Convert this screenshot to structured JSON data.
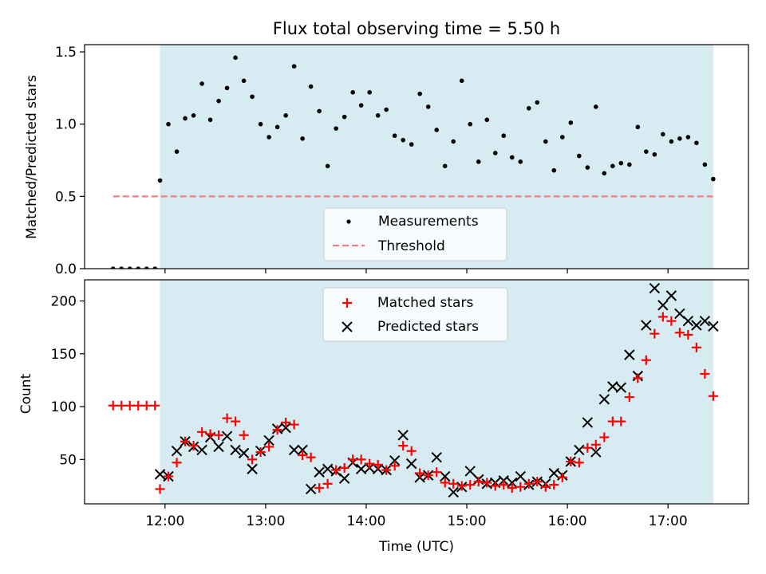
{
  "chart_data": [
    {
      "type": "scatter",
      "title": "Flux total observing time = 5.50 h",
      "ylabel": "Matched/Predicted stars",
      "xlabel": "",
      "xlim": [
        "11:12",
        "17:48"
      ],
      "ylim": [
        0,
        1.55
      ],
      "yticks": [
        "0.0",
        "0.5",
        "1.0",
        "1.5"
      ],
      "observing_window": [
        "11:57",
        "17:27"
      ],
      "window_color": "#add8e6",
      "legend_position": "lower center",
      "series": [
        {
          "name": "Measurements",
          "color": "#000000",
          "marker": "dot",
          "x": [
            "11:29",
            "11:34",
            "11:39",
            "11:44",
            "11:49",
            "11:54",
            "11:57",
            "12:02",
            "12:07",
            "12:12",
            "12:17",
            "12:22",
            "12:27",
            "12:32",
            "12:37",
            "12:42",
            "12:47",
            "12:52",
            "12:57",
            "13:02",
            "13:07",
            "13:12",
            "13:17",
            "13:22",
            "13:27",
            "13:32",
            "13:37",
            "13:42",
            "13:47",
            "13:52",
            "13:57",
            "14:02",
            "14:07",
            "14:12",
            "14:17",
            "14:22",
            "14:27",
            "14:32",
            "14:37",
            "14:42",
            "14:47",
            "14:52",
            "14:57",
            "15:02",
            "15:07",
            "15:12",
            "15:17",
            "15:22",
            "15:27",
            "15:32",
            "15:37",
            "15:42",
            "15:47",
            "15:52",
            "15:57",
            "16:02",
            "16:07",
            "16:12",
            "16:17",
            "16:22",
            "16:27",
            "16:32",
            "16:37",
            "16:42",
            "16:47",
            "16:52",
            "16:57",
            "17:02",
            "17:07",
            "17:12",
            "17:17",
            "17:22",
            "17:27"
          ],
          "y": [
            0,
            0,
            0,
            0,
            0,
            0,
            0.61,
            1.0,
            0.81,
            1.04,
            1.06,
            1.28,
            1.03,
            1.16,
            1.25,
            1.46,
            1.3,
            1.19,
            1.0,
            0.91,
            0.98,
            1.06,
            1.4,
            0.9,
            1.26,
            1.09,
            0.71,
            0.97,
            1.05,
            1.22,
            1.13,
            1.22,
            1.06,
            1.1,
            0.92,
            0.89,
            0.86,
            1.21,
            1.12,
            0.96,
            0.71,
            0.88,
            1.3,
            1.0,
            0.74,
            1.03,
            0.8,
            0.92,
            0.77,
            0.74,
            1.11,
            1.15,
            0.88,
            0.68,
            0.91,
            1.01,
            0.78,
            0.7,
            1.12,
            0.66,
            0.71,
            0.73,
            0.72,
            0.98,
            0.81,
            0.79,
            0.93,
            0.88,
            0.9,
            0.91,
            0.87,
            0.72,
            0.62
          ]
        },
        {
          "name": "Threshold",
          "color": "#f08080",
          "style": "dashed",
          "x": [
            "11:29",
            "17:27"
          ],
          "y": [
            0.5,
            0.5
          ]
        }
      ]
    },
    {
      "type": "scatter",
      "title": "",
      "xlabel": "Time (UTC)",
      "ylabel": "Count",
      "xlim": [
        "11:12",
        "17:48"
      ],
      "ylim": [
        8,
        220
      ],
      "xticks": [
        "12:00",
        "13:00",
        "14:00",
        "15:00",
        "16:00",
        "17:00"
      ],
      "yticks": [
        "50",
        "100",
        "150",
        "200"
      ],
      "observing_window": [
        "11:57",
        "17:27"
      ],
      "window_color": "#add8e6",
      "legend_position": "upper center",
      "series": [
        {
          "name": "Matched stars",
          "color": "#ff0000",
          "marker": "plus",
          "x": [
            "11:29",
            "11:34",
            "11:39",
            "11:44",
            "11:49",
            "11:54",
            "11:57",
            "12:02",
            "12:07",
            "12:12",
            "12:17",
            "12:22",
            "12:27",
            "12:32",
            "12:37",
            "12:42",
            "12:47",
            "12:52",
            "12:57",
            "13:02",
            "13:07",
            "13:12",
            "13:17",
            "13:22",
            "13:27",
            "13:32",
            "13:37",
            "13:42",
            "13:47",
            "13:52",
            "13:57",
            "14:02",
            "14:07",
            "14:12",
            "14:17",
            "14:22",
            "14:27",
            "14:32",
            "14:37",
            "14:42",
            "14:47",
            "14:52",
            "14:57",
            "15:02",
            "15:07",
            "15:12",
            "15:17",
            "15:22",
            "15:27",
            "15:32",
            "15:37",
            "15:42",
            "15:47",
            "15:52",
            "15:57",
            "16:02",
            "16:07",
            "16:12",
            "16:17",
            "16:22",
            "16:27",
            "16:32",
            "16:37",
            "16:42",
            "16:47",
            "16:52",
            "16:57",
            "17:02",
            "17:07",
            "17:12",
            "17:17",
            "17:22",
            "17:27"
          ],
          "y": [
            101,
            101,
            101,
            101,
            101,
            101,
            22,
            34,
            47,
            67,
            63,
            76,
            74,
            73,
            89,
            86,
            73,
            50,
            57,
            62,
            78,
            85,
            83,
            54,
            52,
            23,
            27,
            40,
            42,
            50,
            50,
            46,
            45,
            40,
            44,
            63,
            58,
            37,
            35,
            38,
            28,
            27,
            25,
            26,
            29,
            28,
            25,
            26,
            23,
            24,
            27,
            29,
            24,
            26,
            33,
            48,
            47,
            61,
            64,
            71,
            86,
            86,
            109,
            127,
            144,
            169,
            185,
            181,
            170,
            168,
            156,
            131,
            110
          ]
        },
        {
          "name": "Predicted stars",
          "color": "#000000",
          "marker": "x",
          "x": [
            "11:57",
            "12:02",
            "12:07",
            "12:12",
            "12:17",
            "12:22",
            "12:27",
            "12:32",
            "12:37",
            "12:42",
            "12:47",
            "12:52",
            "12:57",
            "13:02",
            "13:07",
            "13:12",
            "13:17",
            "13:22",
            "13:27",
            "13:32",
            "13:37",
            "13:42",
            "13:47",
            "13:52",
            "13:57",
            "14:02",
            "14:07",
            "14:12",
            "14:17",
            "14:22",
            "14:27",
            "14:32",
            "14:37",
            "14:42",
            "14:47",
            "14:52",
            "14:57",
            "15:02",
            "15:07",
            "15:12",
            "15:17",
            "15:22",
            "15:27",
            "15:32",
            "15:37",
            "15:42",
            "15:47",
            "15:52",
            "15:57",
            "16:02",
            "16:07",
            "16:12",
            "16:17",
            "16:22",
            "16:27",
            "16:32",
            "16:37",
            "16:42",
            "16:47",
            "16:52",
            "16:57",
            "17:02",
            "17:07",
            "17:12",
            "17:17",
            "17:22",
            "17:27"
          ],
          "y": [
            36,
            34,
            58,
            67,
            62,
            59,
            71,
            62,
            72,
            59,
            56,
            41,
            58,
            68,
            79,
            80,
            59,
            59,
            22,
            38,
            41,
            39,
            32,
            47,
            41,
            42,
            41,
            40,
            49,
            73,
            46,
            33,
            35,
            52,
            34,
            19,
            24,
            39,
            31,
            27,
            28,
            30,
            28,
            34,
            26,
            29,
            27,
            37,
            35,
            48,
            59,
            85,
            57,
            107,
            119,
            118,
            149,
            129,
            177,
            212,
            196,
            205,
            188,
            181,
            177,
            181,
            176
          ]
        }
      ]
    }
  ]
}
